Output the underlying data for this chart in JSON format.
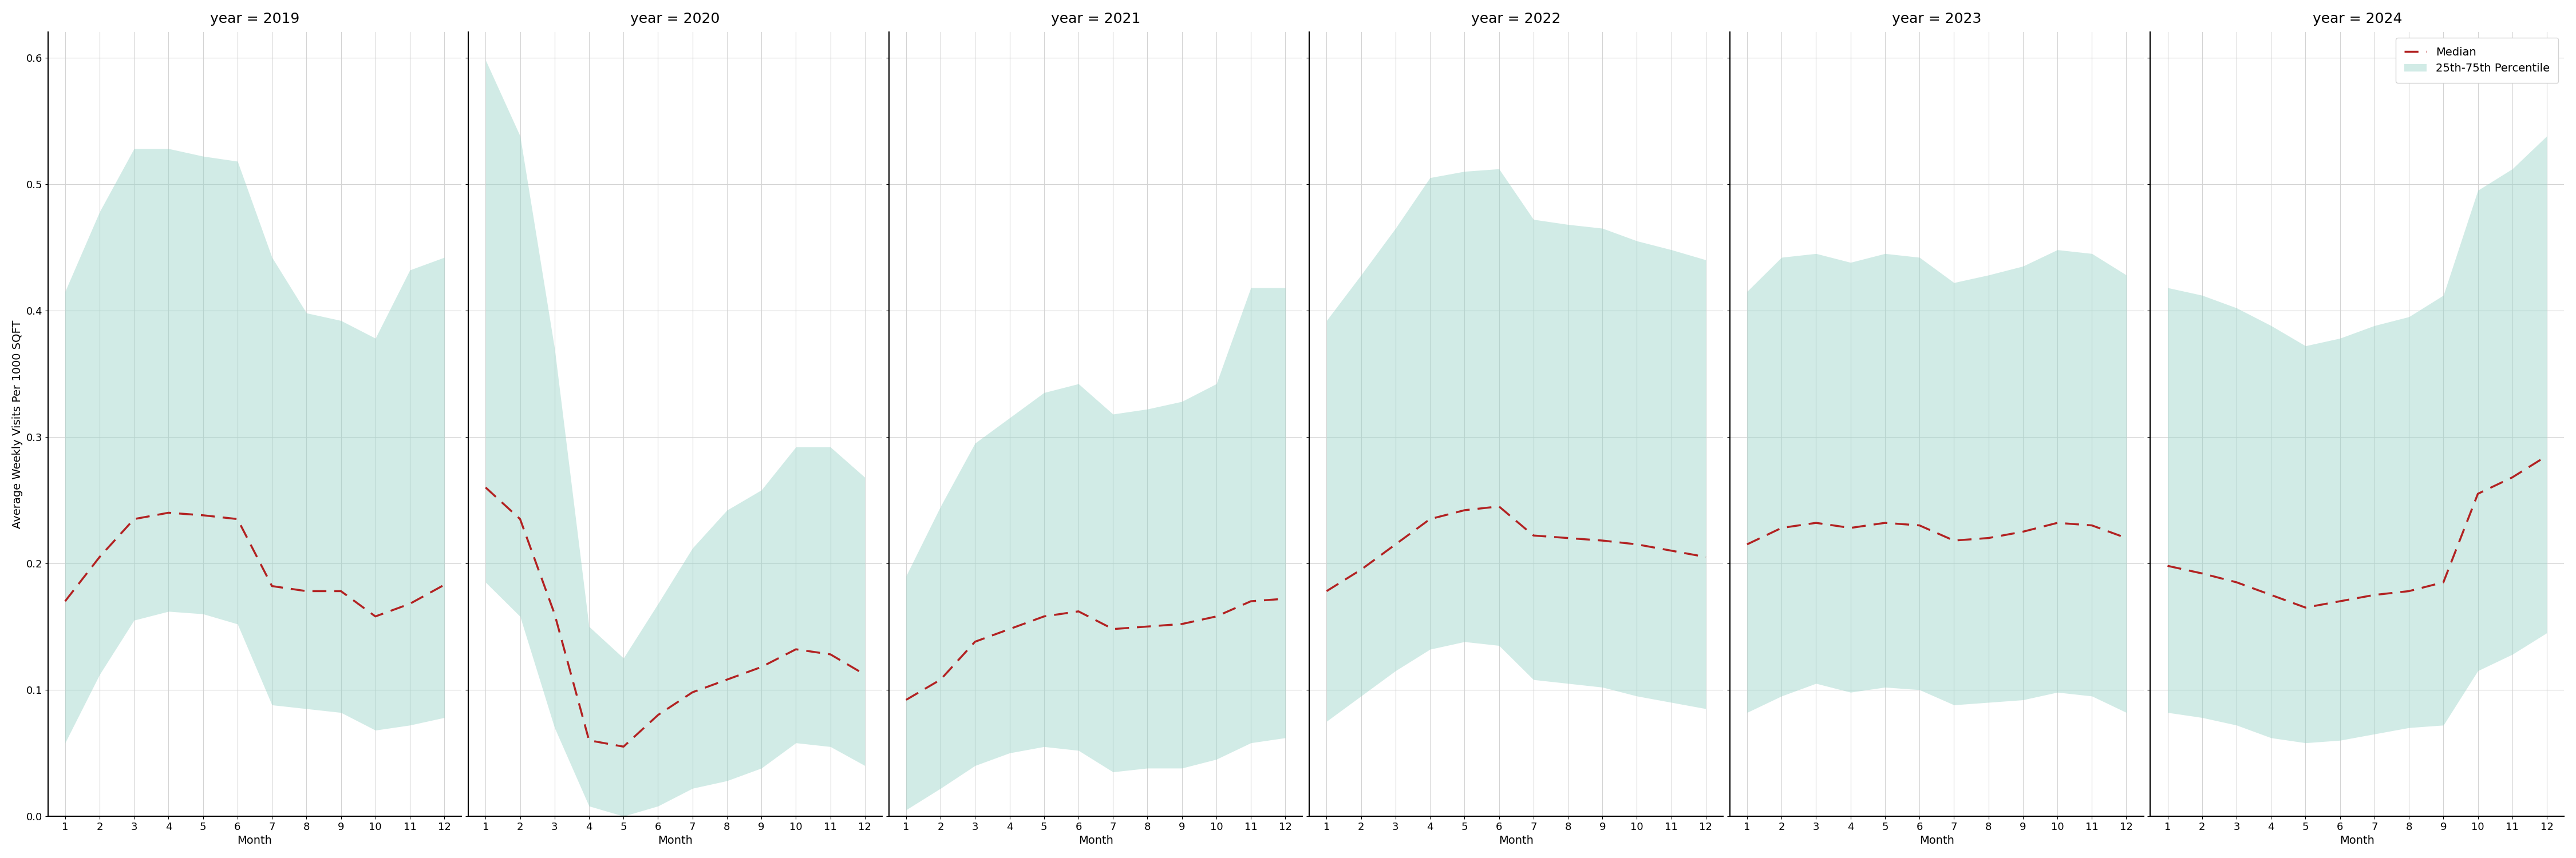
{
  "years": [
    2019,
    2020,
    2021,
    2022,
    2023,
    2024
  ],
  "months": [
    1,
    2,
    3,
    4,
    5,
    6,
    7,
    8,
    9,
    10,
    11,
    12
  ],
  "median": {
    "2019": [
      0.17,
      0.205,
      0.235,
      0.24,
      0.238,
      0.235,
      0.182,
      0.178,
      0.178,
      0.158,
      0.168,
      0.183
    ],
    "2020": [
      0.26,
      0.235,
      0.16,
      0.06,
      0.055,
      0.08,
      0.098,
      0.108,
      0.118,
      0.132,
      0.128,
      0.112
    ],
    "2021": [
      0.092,
      0.108,
      0.138,
      0.148,
      0.158,
      0.162,
      0.148,
      0.15,
      0.152,
      0.158,
      0.17,
      0.172
    ],
    "2022": [
      0.178,
      0.195,
      0.215,
      0.235,
      0.242,
      0.245,
      0.222,
      0.22,
      0.218,
      0.215,
      0.21,
      0.205
    ],
    "2023": [
      0.215,
      0.228,
      0.232,
      0.228,
      0.232,
      0.23,
      0.218,
      0.22,
      0.225,
      0.232,
      0.23,
      0.22
    ],
    "2024": [
      0.198,
      0.192,
      0.185,
      0.175,
      0.165,
      0.17,
      0.175,
      0.178,
      0.185,
      0.255,
      0.268,
      0.285
    ]
  },
  "q25": {
    "2019": [
      0.058,
      0.112,
      0.155,
      0.162,
      0.16,
      0.152,
      0.088,
      0.085,
      0.082,
      0.068,
      0.072,
      0.078
    ],
    "2020": [
      0.185,
      0.158,
      0.07,
      0.008,
      0.0,
      0.008,
      0.022,
      0.028,
      0.038,
      0.058,
      0.055,
      0.04
    ],
    "2021": [
      0.005,
      0.022,
      0.04,
      0.05,
      0.055,
      0.052,
      0.035,
      0.038,
      0.038,
      0.045,
      0.058,
      0.062
    ],
    "2022": [
      0.075,
      0.095,
      0.115,
      0.132,
      0.138,
      0.135,
      0.108,
      0.105,
      0.102,
      0.095,
      0.09,
      0.085
    ],
    "2023": [
      0.082,
      0.095,
      0.105,
      0.098,
      0.102,
      0.1,
      0.088,
      0.09,
      0.092,
      0.098,
      0.095,
      0.082
    ],
    "2024": [
      0.082,
      0.078,
      0.072,
      0.062,
      0.058,
      0.06,
      0.065,
      0.07,
      0.072,
      0.115,
      0.128,
      0.145
    ]
  },
  "q75": {
    "2019": [
      0.415,
      0.478,
      0.528,
      0.528,
      0.522,
      0.518,
      0.442,
      0.398,
      0.392,
      0.378,
      0.432,
      0.442
    ],
    "2020": [
      0.598,
      0.538,
      0.37,
      0.15,
      0.125,
      0.168,
      0.212,
      0.242,
      0.258,
      0.292,
      0.292,
      0.268
    ],
    "2021": [
      0.19,
      0.245,
      0.295,
      0.315,
      0.335,
      0.342,
      0.318,
      0.322,
      0.328,
      0.342,
      0.418,
      0.418
    ],
    "2022": [
      0.392,
      0.428,
      0.465,
      0.505,
      0.51,
      0.512,
      0.472,
      0.468,
      0.465,
      0.455,
      0.448,
      0.44
    ],
    "2023": [
      0.415,
      0.442,
      0.445,
      0.438,
      0.445,
      0.442,
      0.422,
      0.428,
      0.435,
      0.448,
      0.445,
      0.428
    ],
    "2024": [
      0.418,
      0.412,
      0.402,
      0.388,
      0.372,
      0.378,
      0.388,
      0.395,
      0.412,
      0.495,
      0.512,
      0.538
    ]
  },
  "ylim": [
    0.0,
    0.62
  ],
  "yticks": [
    0.0,
    0.1,
    0.2,
    0.3,
    0.4,
    0.5,
    0.6
  ],
  "fill_color": "#99d4c8",
  "fill_alpha": 0.45,
  "median_color": "#b22222",
  "ylabel": "Average Weekly Visits Per 1000 SQFT",
  "xlabel": "Month",
  "legend_median_label": "Median",
  "legend_band_label": "25th-75th Percentile",
  "title_fontsize": 18,
  "label_fontsize": 14,
  "tick_fontsize": 13,
  "legend_fontsize": 14
}
